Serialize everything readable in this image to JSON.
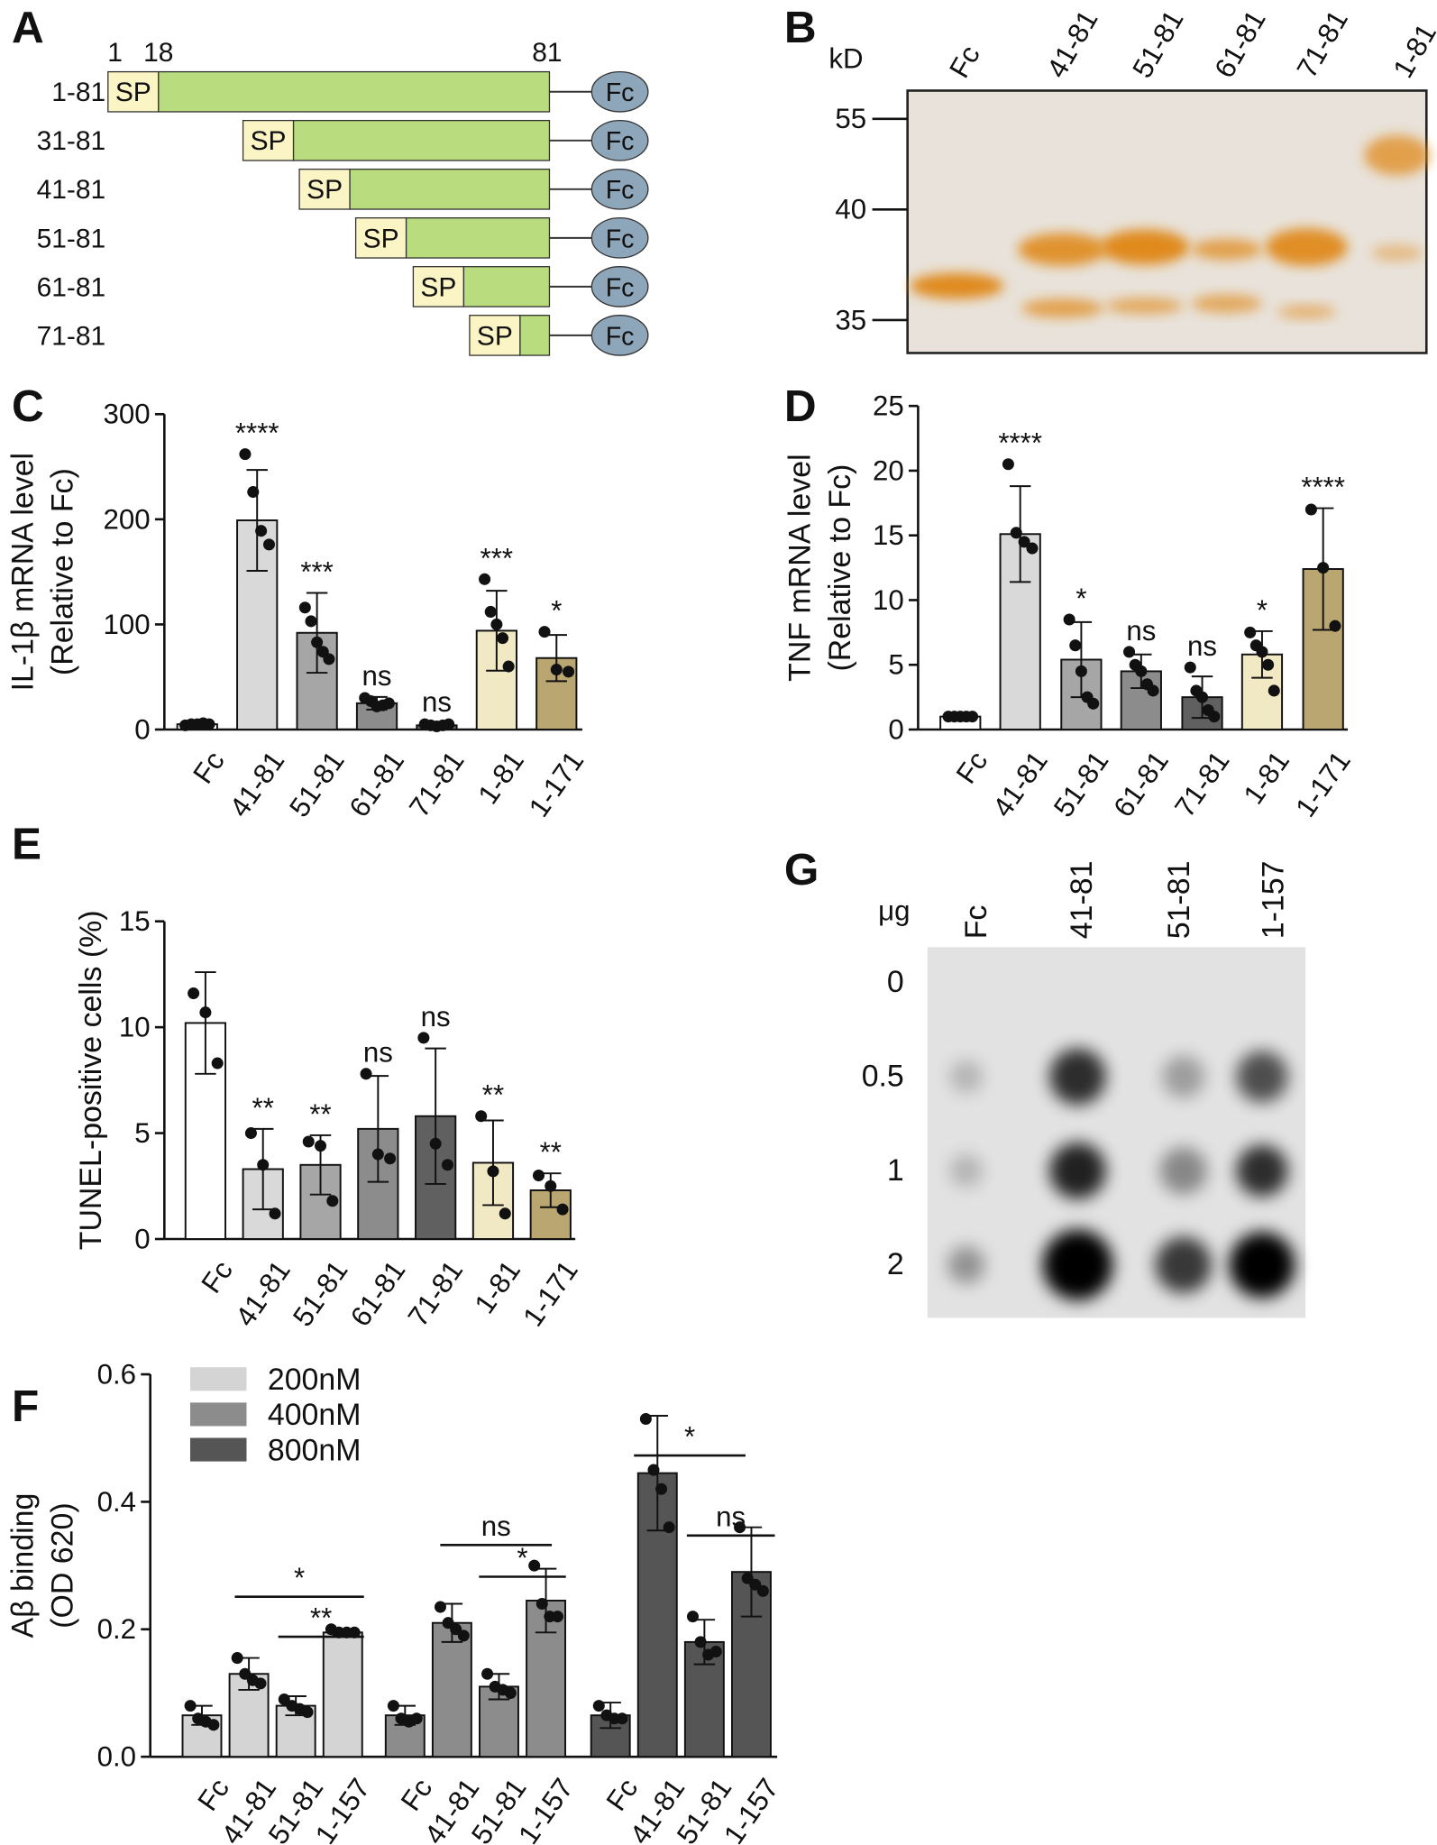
{
  "panel_a": {
    "label": "A",
    "positions": [
      "1",
      "18",
      "81"
    ],
    "rows": [
      "1-81",
      "31-81",
      "41-81",
      "51-81",
      "61-81",
      "71-81"
    ],
    "sp": "SP",
    "fc": "Fc"
  },
  "panel_b": {
    "label": "B",
    "unit": "kD",
    "markers": [
      "55",
      "40",
      "35"
    ],
    "lanes": [
      "Fc",
      "41-81",
      "51-81",
      "61-81",
      "71-81",
      "1-81"
    ]
  },
  "panel_g": {
    "label": "G",
    "unit": "μg",
    "doses": [
      "0",
      "0.5",
      "1",
      "2"
    ],
    "lanes": [
      "Fc",
      "41-81",
      "51-81",
      "1-157"
    ]
  },
  "chart_data": [
    {
      "type": "bar",
      "label": "C",
      "ylabel": [
        "IL-1β mRNA level",
        "(Relative to Fc)"
      ],
      "categories": [
        "Fc",
        "41-81",
        "51-81",
        "61-81",
        "71-81",
        "1-81",
        "1-171"
      ],
      "values": [
        5,
        199,
        92,
        25,
        4,
        94,
        68
      ],
      "errors": [
        2,
        48,
        38,
        6,
        2,
        38,
        22
      ],
      "points": [
        [
          4,
          5,
          5,
          6,
          5
        ],
        [
          262,
          226,
          189,
          176
        ],
        [
          116,
          103,
          83,
          74,
          67
        ],
        [
          30,
          27,
          22,
          23,
          25
        ],
        [
          5,
          4,
          3,
          4,
          5
        ],
        [
          143,
          112,
          100,
          87,
          60
        ],
        [
          93,
          57,
          55
        ]
      ],
      "annotations": [
        null,
        "****",
        "***",
        "ns",
        "ns",
        "***",
        "*"
      ],
      "colors": [
        "#ffffff",
        "#d9d9d9",
        "#a6a6a6",
        "#8c8c8c",
        "#606060",
        "#f1e8c4",
        "#b9a670"
      ],
      "ylim": [
        0,
        300
      ],
      "yticks": [
        0,
        100,
        200,
        300
      ]
    },
    {
      "type": "bar",
      "label": "D",
      "ylabel": [
        "TNF mRNA level",
        "(Relative to Fc)"
      ],
      "categories": [
        "Fc",
        "41-81",
        "51-81",
        "61-81",
        "71-81",
        "1-81",
        "1-171"
      ],
      "values": [
        1,
        15.1,
        5.4,
        4.5,
        2.5,
        5.8,
        12.4
      ],
      "errors": [
        0.1,
        3.7,
        2.9,
        1.3,
        1.6,
        1.8,
        4.7
      ],
      "points": [
        [
          1,
          1,
          1,
          1,
          1
        ],
        [
          20.5,
          15.2,
          14.5,
          14
        ],
        [
          8.5,
          6.5,
          4.5,
          2.5,
          2
        ],
        [
          6,
          5,
          4.5,
          3.5,
          3
        ],
        [
          4.8,
          3,
          2.5,
          1.5,
          1
        ],
        [
          7.5,
          6.5,
          6,
          5,
          3
        ],
        [
          17,
          12.5,
          8
        ]
      ],
      "annotations": [
        null,
        "****",
        "*",
        "ns",
        "ns",
        "*",
        "****"
      ],
      "colors": [
        "#ffffff",
        "#d9d9d9",
        "#a6a6a6",
        "#8c8c8c",
        "#606060",
        "#f1e8c4",
        "#b9a670"
      ],
      "ylim": [
        0,
        25
      ],
      "yticks": [
        0,
        5,
        10,
        15,
        20,
        25
      ]
    },
    {
      "type": "bar",
      "label": "E",
      "ylabel": [
        "TUNEL-positive cells (%)"
      ],
      "categories": [
        "Fc",
        "41-81",
        "51-81",
        "61-81",
        "71-81",
        "1-81",
        "1-171"
      ],
      "values": [
        10.2,
        3.3,
        3.5,
        5.2,
        5.8,
        3.6,
        2.3
      ],
      "errors": [
        2.4,
        1.9,
        1.4,
        2.5,
        3.2,
        2,
        0.8
      ],
      "points": [
        [
          11.6,
          10.7,
          8.3
        ],
        [
          5,
          3.5,
          1.2
        ],
        [
          4.6,
          4.4,
          1.8
        ],
        [
          7.8,
          4,
          3.8
        ],
        [
          9.5,
          4.5,
          3.5
        ],
        [
          5.8,
          3.2,
          1.2
        ],
        [
          3,
          2.5,
          1.4
        ]
      ],
      "annotations": [
        null,
        "**",
        "**",
        "ns",
        "ns",
        "**",
        "**"
      ],
      "colors": [
        "#ffffff",
        "#d9d9d9",
        "#a6a6a6",
        "#8c8c8c",
        "#606060",
        "#f1e8c4",
        "#b9a670"
      ],
      "ylim": [
        0,
        15
      ],
      "yticks": [
        0,
        5,
        10,
        15
      ]
    },
    {
      "type": "grouped_bar",
      "label": "F",
      "ylabel": [
        "Aβ binding",
        "(OD 620)"
      ],
      "categories": [
        "Fc",
        "41-81",
        "51-81",
        "1-157"
      ],
      "series": [
        {
          "name": "200nM",
          "color": "#d4d4d4",
          "values": [
            0.065,
            0.13,
            0.08,
            0.195
          ],
          "errors": [
            0.015,
            0.025,
            0.015,
            0.005
          ],
          "points": [
            [
              0.08,
              0.06,
              0.055,
              0.05
            ],
            [
              0.155,
              0.13,
              0.12,
              0.115
            ],
            [
              0.09,
              0.08,
              0.075,
              0.07
            ],
            [
              0.2,
              0.195,
              0.195,
              0.195
            ]
          ]
        },
        {
          "name": "400nM",
          "color": "#8c8c8c",
          "values": [
            0.065,
            0.21,
            0.11,
            0.245
          ],
          "errors": [
            0.015,
            0.03,
            0.02,
            0.05
          ],
          "points": [
            [
              0.08,
              0.06,
              0.055,
              0.06
            ],
            [
              0.235,
              0.21,
              0.2,
              0.19
            ],
            [
              0.13,
              0.11,
              0.105,
              0.1
            ],
            [
              0.3,
              0.24,
              0.22,
              0.22
            ]
          ]
        },
        {
          "name": "800nM",
          "color": "#555555",
          "values": [
            0.065,
            0.445,
            0.18,
            0.29
          ],
          "errors": [
            0.02,
            0.09,
            0.035,
            0.07
          ],
          "points": [
            [
              0.08,
              0.065,
              0.06,
              0.06
            ],
            [
              0.53,
              0.45,
              0.42,
              0.36
            ],
            [
              0.22,
              0.18,
              0.16,
              0.165
            ],
            [
              0.36,
              0.28,
              0.27,
              0.26
            ]
          ]
        }
      ],
      "annotations": [
        "*",
        "**",
        "ns",
        "*",
        "*",
        "ns"
      ],
      "ylim": [
        0,
        0.6
      ],
      "yticks": [
        {
          "value": 0,
          "label": "0.0"
        },
        0.2,
        0.4,
        0.6
      ]
    }
  ]
}
